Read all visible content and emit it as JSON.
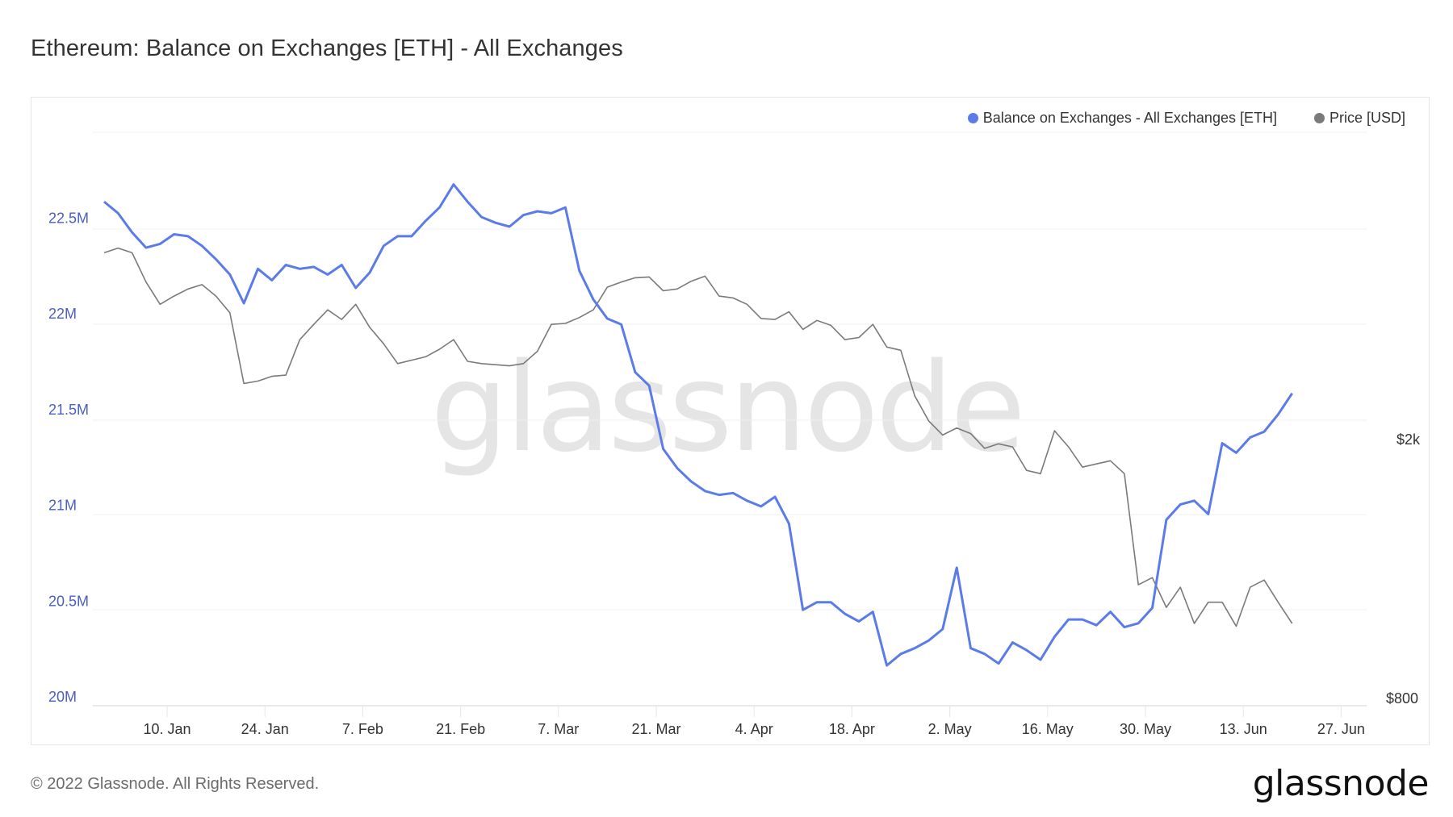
{
  "header": {
    "title": "Ethereum: Balance on Exchanges [ETH] - All Exchanges"
  },
  "legend": {
    "items": [
      {
        "label": "Balance on Exchanges - All Exchanges [ETH]",
        "color": "#5b7be8"
      },
      {
        "label": "Price [USD]",
        "color": "#7a7a7a"
      }
    ]
  },
  "watermark": "glassnode",
  "footer": {
    "copyright": "© 2022 Glassnode. All Rights Reserved.",
    "logo": "glassnode"
  },
  "chart_data": {
    "type": "line",
    "title": "Ethereum: Balance on Exchanges [ETH] - All Exchanges",
    "xlabel": "",
    "ylabel": "",
    "grid": true,
    "legend_position": "top-right",
    "x_ticks": [
      "10. Jan",
      "24. Jan",
      "7. Feb",
      "21. Feb",
      "7. Mar",
      "21. Mar",
      "4. Apr",
      "18. Apr",
      "2. May",
      "16. May",
      "30. May",
      "13. Jun",
      "27. Jun"
    ],
    "y_left": {
      "ticks": [
        "20M",
        "20.5M",
        "21M",
        "21.5M",
        "22M",
        "22.5M"
      ],
      "range": [
        20000000,
        23000000
      ],
      "color": "#5b7be8"
    },
    "y_right": {
      "ticks": [
        "$800",
        "$2k"
      ],
      "scale": "log",
      "range_approx": [
        800,
        4800
      ]
    },
    "x_range": [
      "2021-12-31",
      "2022-07-01"
    ],
    "series": [
      {
        "name": "Balance on Exchanges - All Exchanges [ETH]",
        "axis": "left",
        "unit": "M ETH",
        "start_date": "2022-01-01",
        "step_days": 2,
        "values": [
          22.63,
          22.57,
          22.47,
          22.39,
          22.41,
          22.46,
          22.45,
          22.4,
          22.33,
          22.25,
          22.1,
          22.28,
          22.22,
          22.3,
          22.28,
          22.29,
          22.25,
          22.3,
          22.18,
          22.26,
          22.4,
          22.45,
          22.45,
          22.53,
          22.6,
          22.72,
          22.63,
          22.55,
          22.52,
          22.5,
          22.56,
          22.58,
          22.57,
          22.6,
          22.27,
          22.12,
          22.02,
          21.99,
          21.74,
          21.67,
          21.34,
          21.24,
          21.17,
          21.12,
          21.1,
          21.11,
          21.07,
          21.04,
          21.09,
          20.95,
          20.5,
          20.54,
          20.54,
          20.48,
          20.44,
          20.49,
          20.21,
          20.27,
          20.3,
          20.34,
          20.4,
          20.72,
          20.3,
          20.27,
          20.22,
          20.33,
          20.29,
          20.24,
          20.36,
          20.45,
          20.45,
          20.42,
          20.49,
          20.41,
          20.43,
          20.51,
          20.97,
          21.05,
          21.07,
          21.0,
          21.37,
          21.32,
          21.4,
          21.43,
          21.52,
          21.63
        ],
        "notes": "Peak ~22.72M late Feb; ~20.2M lows early May/late May; spike to ~20.75M around 13 May; sharp rise to ~21.6M by 1 Jul"
      },
      {
        "name": "Price [USD]",
        "axis": "right",
        "unit": "USD",
        "start_date": "2022-01-01",
        "step_days": 2,
        "values": [
          3770,
          3830,
          3770,
          3410,
          3160,
          3250,
          3330,
          3380,
          3250,
          3070,
          2410,
          2430,
          2470,
          2480,
          2800,
          2950,
          3100,
          3000,
          3160,
          2920,
          2760,
          2580,
          2610,
          2640,
          2710,
          2800,
          2600,
          2580,
          2570,
          2560,
          2580,
          2690,
          2950,
          2960,
          3020,
          3100,
          3350,
          3410,
          3460,
          3470,
          3310,
          3330,
          3420,
          3480,
          3250,
          3230,
          3160,
          3010,
          3000,
          3080,
          2900,
          2990,
          2940,
          2800,
          2820,
          2950,
          2730,
          2700,
          2310,
          2120,
          2020,
          2070,
          2030,
          1930,
          1960,
          1940,
          1790,
          1770,
          2050,
          1940,
          1810,
          1830,
          1850,
          1770,
          1210,
          1240,
          1120,
          1200,
          1060,
          1140,
          1140,
          1050,
          1200,
          1230,
          1140,
          1060
        ],
        "notes": "Log scale; ~$3.8k early Jan, ~$2.4k late Jan, ~$3.5k early Apr, ~$2k late May, capitulation to ~$1.05k mid/late Jun"
      }
    ]
  }
}
